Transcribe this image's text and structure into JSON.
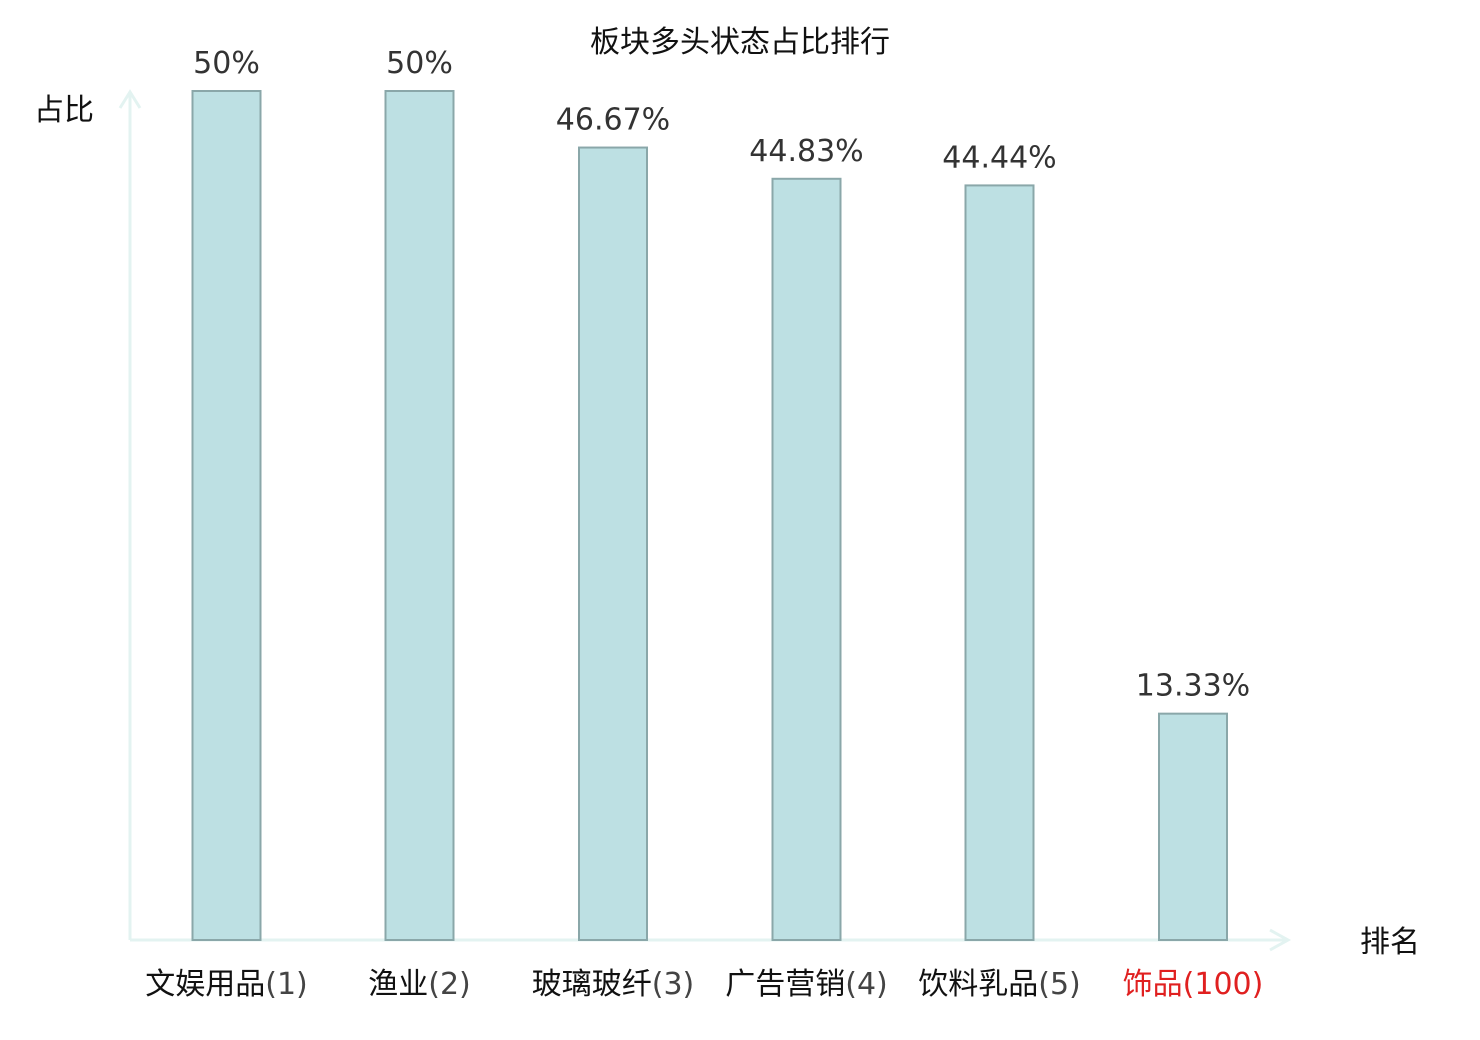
{
  "chart_data": {
    "type": "bar",
    "title": "板块多头状态占比排行",
    "xlabel": "排名",
    "ylabel": "占比",
    "categories": [
      "文娱用品",
      "渔业",
      "玻璃玻纤",
      "广告营销",
      "饮料乳品",
      "饰品"
    ],
    "ranks": [
      "(1)",
      "(2)",
      "(3)",
      "(4)",
      "(5)",
      "(100)"
    ],
    "values": [
      50,
      50,
      46.67,
      44.83,
      44.44,
      13.33
    ],
    "value_labels": [
      "50%",
      "50%",
      "46.67%",
      "44.83%",
      "44.44%",
      "13.33%"
    ],
    "highlight": [
      false,
      false,
      false,
      false,
      false,
      true
    ],
    "ylim": [
      0,
      50
    ],
    "grid": false,
    "colors": {
      "bar_fill": "#bde0e3",
      "bar_stroke": "#8aa7a9",
      "axis": "#e3f3f1",
      "category_text": "#111111",
      "rank_text": "#444444",
      "highlight_text": "#e02020"
    }
  }
}
